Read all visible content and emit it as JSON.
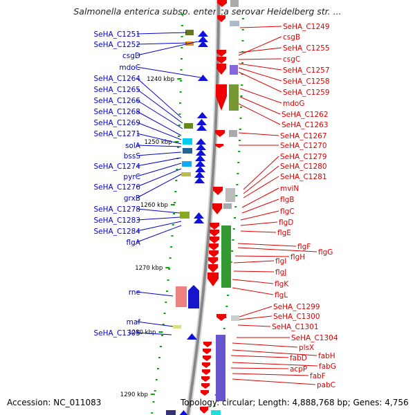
{
  "title": "Salmonella enterica subsp. enterica serovar Heidelberg str. ...",
  "footer": {
    "accession": "Accession: NC_011083",
    "topology": "Topology: circular; Length: 4,888,768 bp; Genes: 4,756"
  },
  "colors": {
    "left_label": "#0000cc",
    "right_label": "#dd0000",
    "backbone": "#888888",
    "tick": "#00aa00"
  },
  "scale_labels": [
    "1240 kbp",
    "1250 kbp",
    "1260 kbp",
    "1270 kbp",
    "1280 kbp",
    "1290 kbp"
  ],
  "left_labels": [
    "SeHA_C1251",
    "SeHA_C1252",
    "csgD",
    "mdoC",
    "SeHA_C1264",
    "SeHA_C1265",
    "SeHA_C1266",
    "SeHA_C1268",
    "SeHA_C1269",
    "SeHA_C1271",
    "solA",
    "bssS",
    "SeHA_C1274",
    "pyrC",
    "SeHA_C1276",
    "grxB",
    "SeHA_C1278",
    "SeHA_C1283",
    "SeHA_C1284",
    "flgA",
    "rne",
    "maf",
    "SeHA_C1305"
  ],
  "right_labels": [
    "SeHA_C1249",
    "csgB",
    "SeHA_C1255",
    "csgC",
    "SeHA_C1257",
    "SeHA_C1258",
    "SeHA_C1259",
    "mdoG",
    "SeHA_C1262",
    "SeHA_C1263",
    "SeHA_C1267",
    "SeHA_C1270",
    "SeHA_C1279",
    "SeHA_C1280",
    "SeHA_C1281",
    "mviN",
    "flgB",
    "flgC",
    "flgD",
    "flgE",
    "flgF",
    "flgG",
    "flgH",
    "flgI",
    "flgJ",
    "flgK",
    "flgL",
    "SeHA_C1299",
    "SeHA_C1300",
    "SeHA_C1301",
    "SeHA_C1304",
    "plsX",
    "fabH",
    "fabD",
    "fabG",
    "acpP",
    "fabF",
    "pabC"
  ]
}
